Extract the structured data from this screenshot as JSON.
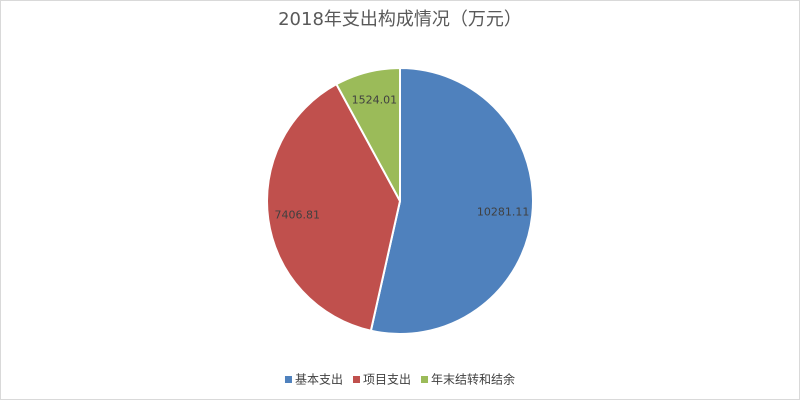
{
  "chart_data": {
    "type": "pie",
    "title": "2018年支出构成情况（万元）",
    "categories": [
      "基本支出",
      "项目支出",
      "年末结转和结余"
    ],
    "values": [
      10281.11,
      7406.81,
      1524.01
    ],
    "colors": [
      "#4f81bd",
      "#c0504d",
      "#9bbb59"
    ],
    "legend": "bottom"
  }
}
